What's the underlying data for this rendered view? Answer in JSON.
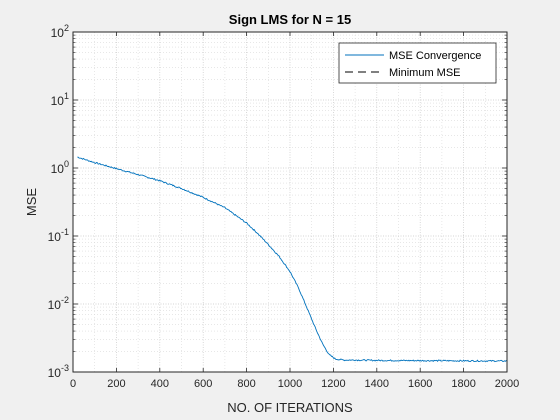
{
  "chart_data": {
    "type": "line",
    "title": "Sign LMS for N = 15",
    "xlabel": "NO. OF ITERATIONS",
    "ylabel": "MSE",
    "xlim": [
      0,
      2000
    ],
    "ylim": [
      0.001,
      100
    ],
    "yscale": "log",
    "grid": true,
    "minor_grid": true,
    "legend_position": "top-right",
    "x_ticks": [
      0,
      200,
      400,
      600,
      800,
      1000,
      1200,
      1400,
      1600,
      1800,
      2000
    ],
    "x_tick_labels": [
      "0",
      "200",
      "400",
      "600",
      "800",
      "1000",
      "1200",
      "1400",
      "1600",
      "1800",
      "2000"
    ],
    "y_ticks": [
      0.001,
      0.01,
      0.1,
      1,
      10,
      100
    ],
    "y_tick_labels": [
      {
        "base": "10",
        "exp": "-3"
      },
      {
        "base": "10",
        "exp": "-2"
      },
      {
        "base": "10",
        "exp": "-1"
      },
      {
        "base": "10",
        "exp": "0"
      },
      {
        "base": "10",
        "exp": "1"
      },
      {
        "base": "10",
        "exp": "2"
      }
    ],
    "series": [
      {
        "name": "MSE Convergence",
        "color": "#0072bd",
        "style": "solid",
        "x": [
          20,
          100,
          200,
          300,
          400,
          500,
          600,
          700,
          800,
          850,
          900,
          950,
          1000,
          1040,
          1080,
          1120,
          1150,
          1180,
          1210,
          1250,
          1300,
          1400,
          1600,
          1800,
          2000
        ],
        "y": [
          1.45,
          1.2,
          0.98,
          0.8,
          0.65,
          0.5,
          0.37,
          0.26,
          0.155,
          0.11,
          0.075,
          0.05,
          0.03,
          0.017,
          0.0085,
          0.0042,
          0.0026,
          0.0018,
          0.00155,
          0.0015,
          0.0015,
          0.00148,
          0.00147,
          0.00146,
          0.00145
        ]
      },
      {
        "name": "Minimum MSE",
        "color": "#000000",
        "style": "dashed",
        "x": [
          0,
          2000
        ],
        "y": [
          0.001,
          0.001
        ]
      }
    ]
  }
}
